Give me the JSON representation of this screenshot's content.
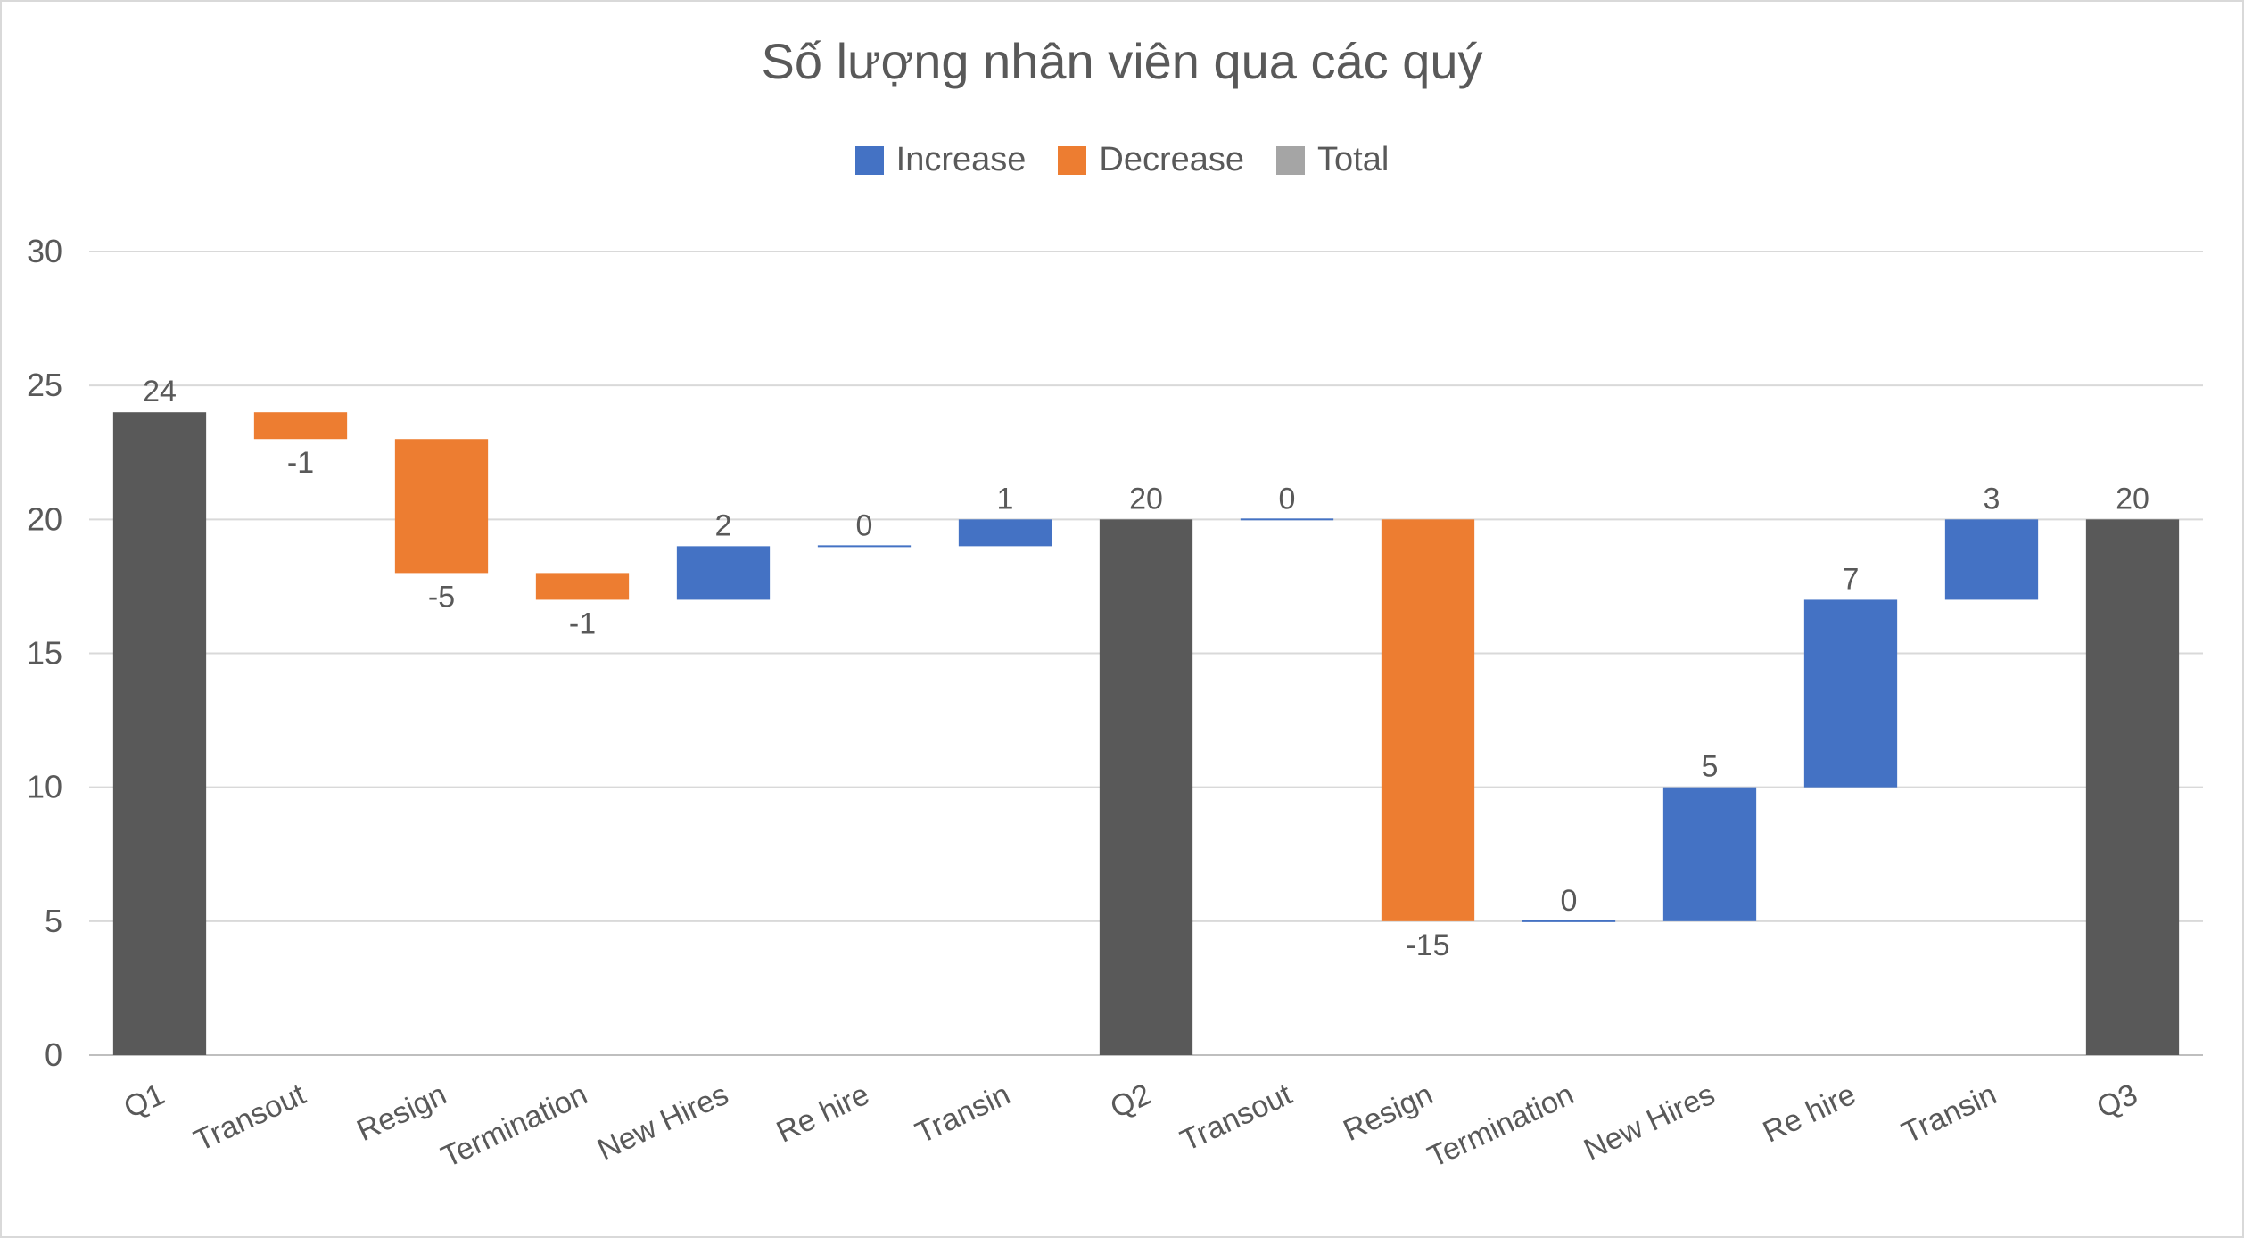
{
  "chart_data": {
    "type": "bar",
    "subtype": "waterfall",
    "title": "Số lượng nhân viên qua các quý",
    "xlabel": "",
    "ylabel": "",
    "ylim": [
      0,
      30
    ],
    "yticks": [
      0,
      5,
      10,
      15,
      20,
      25,
      30
    ],
    "grid": true,
    "legend_position": "top",
    "legend": [
      {
        "name": "Increase",
        "color": "#4472C4"
      },
      {
        "name": "Decrease",
        "color": "#ED7D31"
      },
      {
        "name": "Total",
        "color": "#A5A5A5"
      }
    ],
    "total_bar_color": "#595959",
    "categories": [
      "Q1",
      "Transout",
      "Resign",
      "Termination",
      "New Hires",
      "Re hire",
      "Transin",
      "Q2",
      "Transout",
      "Resign",
      "Termination",
      "New Hires",
      "Re hire",
      "Transin",
      "Q3"
    ],
    "values": [
      24,
      -1,
      -5,
      -1,
      2,
      0,
      1,
      20,
      0,
      -15,
      0,
      5,
      7,
      3,
      20
    ],
    "value_labels": [
      "24",
      "-1",
      "-5",
      "-1",
      "2",
      "0",
      "1",
      "20",
      "0",
      "-15",
      "0",
      "5",
      "7",
      "3",
      "20"
    ],
    "kinds": [
      "total",
      "decrease",
      "decrease",
      "decrease",
      "increase",
      "increase",
      "increase",
      "total",
      "increase",
      "decrease",
      "increase",
      "increase",
      "increase",
      "increase",
      "total"
    ],
    "bar_start": [
      0,
      24,
      23,
      18,
      17,
      19,
      19,
      0,
      20,
      20,
      5,
      5,
      10,
      17,
      0
    ],
    "bar_end": [
      24,
      23,
      18,
      17,
      19,
      19,
      20,
      20,
      20,
      5,
      5,
      10,
      17,
      20,
      20
    ]
  }
}
